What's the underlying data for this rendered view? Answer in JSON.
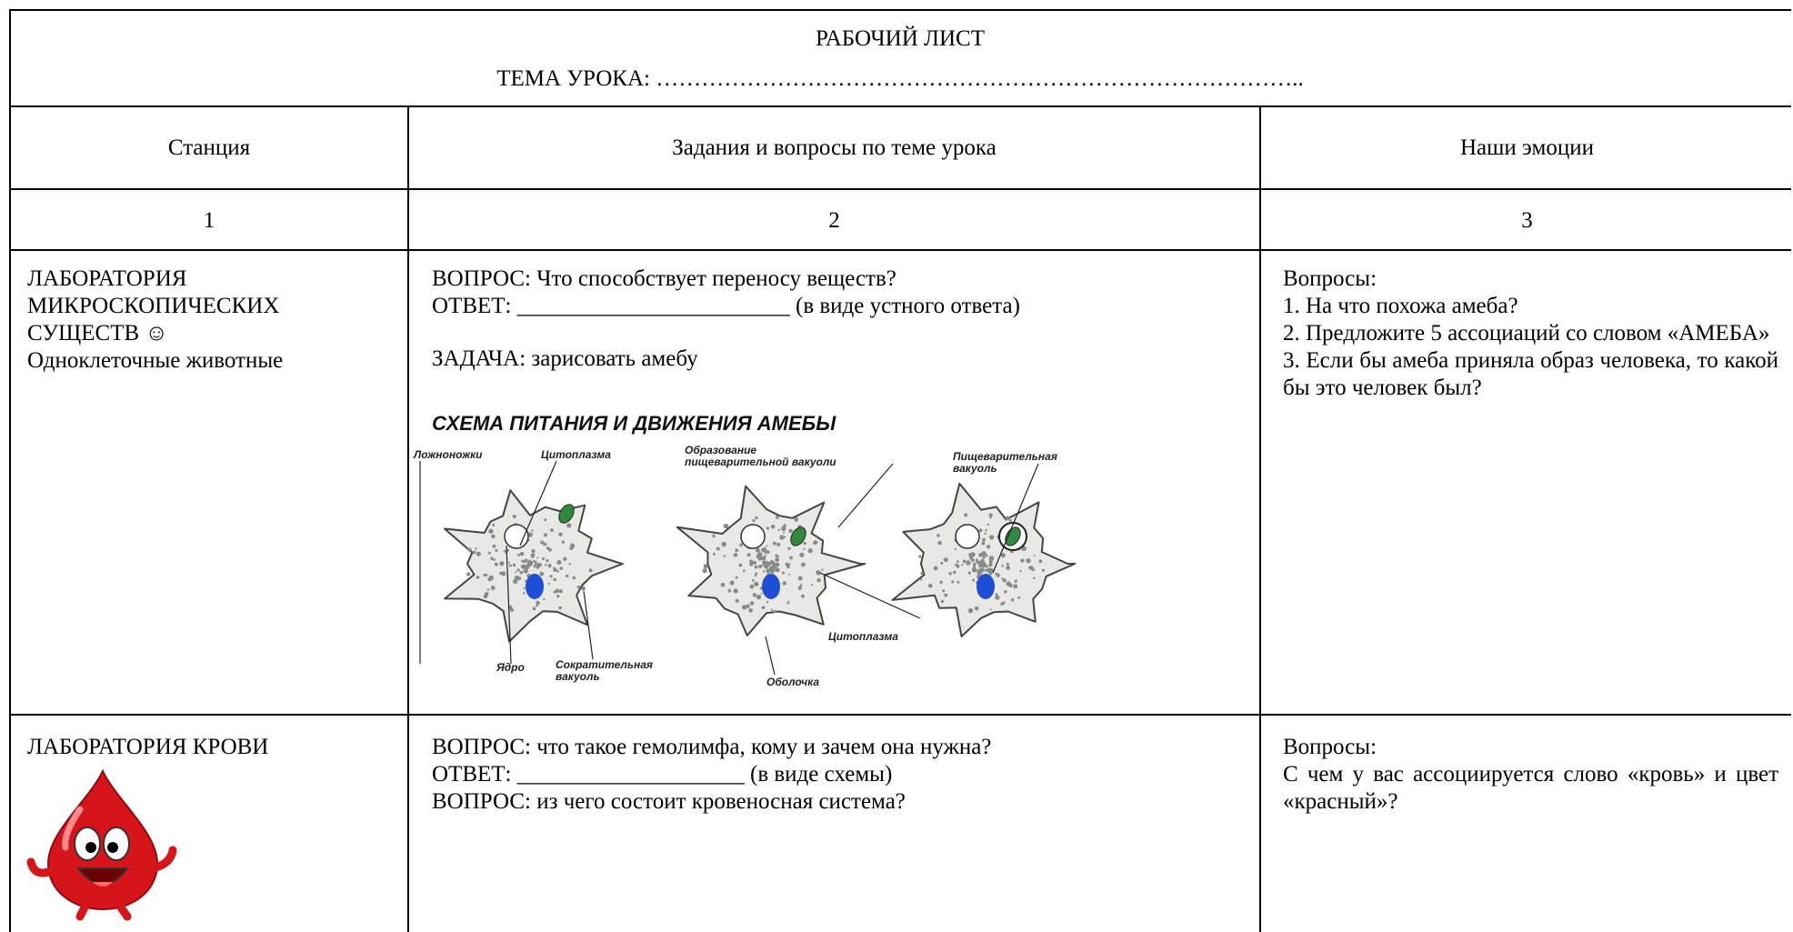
{
  "header": {
    "title": "РАБОЧИЙ ЛИСТ",
    "topic": "ТЕМА УРОКА: ………………………………………………………………………….."
  },
  "table": {
    "columns": [
      "Станция",
      "Задания и вопросы по теме урока",
      "Наши эмоции"
    ],
    "numbers": [
      "1",
      "2",
      "3"
    ],
    "rows": [
      {
        "station": [
          "ЛАБОРАТОРИЯ",
          "МИКРОСКОПИЧЕСКИХ",
          "СУЩЕСТВ ☺",
          "Одноклеточные животные"
        ],
        "tasks": [
          "ВОПРОС: Что способствует переносу веществ?",
          "ОТВЕТ: ________________________ (в виде устного ответа)",
          "ЗАДАЧА: зарисовать амебу"
        ],
        "figure": {
          "title": "СХЕМА ПИТАНИЯ И ДВИЖЕНИЯ АМЕБЫ",
          "labels": [
            "Ложноножки",
            "Цитоплазма",
            "Образование пищеварительной вакуоли",
            "Пищеварительная вакуоль",
            "Цитоплазма",
            "Ядро",
            "Сократительная вакуоль",
            "Оболочка"
          ]
        },
        "emotions": [
          "Вопросы:",
          "1. На что похожа амеба?",
          "2. Предложите 5 ассоциаций со словом «АМЕБА»",
          "3. Если бы амеба приняла образ человека, то какой бы это человек был?"
        ]
      },
      {
        "station": [
          "ЛАБОРАТОРИЯ КРОВИ"
        ],
        "tasks": [
          "ВОПРОС: что такое гемолимфа, кому и зачем она нужна?",
          "ОТВЕТ: ____________________ (в виде схемы)",
          "ВОПРОС: из чего состоит кровеносная система?"
        ],
        "emotions": [
          "Вопросы:",
          "С чем у вас ассоциируется слово «кровь» и цвет «красный»?"
        ]
      }
    ]
  }
}
